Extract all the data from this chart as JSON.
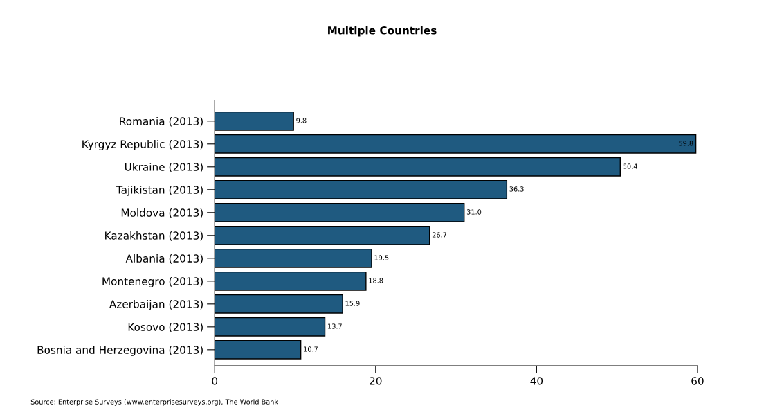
{
  "chart_data": {
    "type": "bar",
    "orientation": "horizontal",
    "title": "Multiple Countries",
    "categories": [
      "Romania (2013)",
      "Kyrgyz Republic (2013)",
      "Ukraine (2013)",
      "Tajikistan (2013)",
      "Moldova (2013)",
      "Kazakhstan (2013)",
      "Albania (2013)",
      "Montenegro (2013)",
      "Azerbaijan (2013)",
      "Kosovo (2013)",
      "Bosnia and Herzegovina (2013)"
    ],
    "values": [
      9.8,
      59.8,
      50.4,
      36.3,
      31.0,
      26.7,
      19.5,
      18.8,
      15.9,
      13.7,
      10.7
    ],
    "value_labels": [
      "9.8",
      "59.8",
      "50.4",
      "36.3",
      "31.0",
      "26.7",
      "19.5",
      "18.8",
      "15.9",
      "13.7",
      "10.7"
    ],
    "color": "#1f5a80",
    "xlim": [
      0,
      60
    ],
    "xticks": [
      0,
      20,
      40,
      60
    ],
    "grid": false,
    "legend": false,
    "annotations": [
      "Source: Enterprise Surveys (www.enterprisesurveys.org), The World Bank"
    ]
  }
}
